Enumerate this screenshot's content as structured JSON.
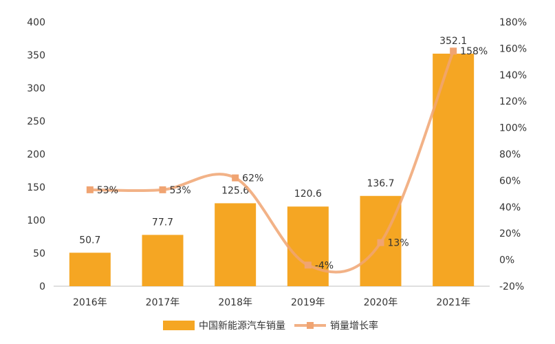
{
  "chart_data": {
    "type": "bar+line",
    "categories": [
      "2016年",
      "2017年",
      "2018年",
      "2019年",
      "2020年",
      "2021年"
    ],
    "series": [
      {
        "name": "中国新能源汽车销量",
        "type": "bar",
        "axis": "left",
        "values": [
          50.7,
          77.7,
          125.6,
          120.6,
          136.7,
          352.1
        ],
        "labels": [
          "50.7",
          "77.7",
          "125.6",
          "120.6",
          "136.7",
          "352.1"
        ],
        "color": "#F5A623"
      },
      {
        "name": "销量增长率",
        "type": "line",
        "axis": "right",
        "smooth": true,
        "values": [
          53,
          53,
          62,
          -4,
          13,
          158
        ],
        "labels": [
          "53%",
          "53%",
          "62%",
          "-4%",
          "13%",
          "158%"
        ],
        "color": "#F0A472"
      }
    ],
    "y_left": {
      "min": 0,
      "max": 400,
      "ticks": [
        0,
        50,
        100,
        150,
        200,
        250,
        300,
        350,
        400
      ],
      "tick_labels": [
        "0",
        "50",
        "100",
        "150",
        "200",
        "250",
        "300",
        "350",
        "400"
      ]
    },
    "y_right": {
      "min": -20,
      "max": 180,
      "ticks": [
        -20,
        0,
        20,
        40,
        60,
        80,
        100,
        120,
        140,
        160,
        180
      ],
      "tick_labels": [
        "-20%",
        "0%",
        "20%",
        "40%",
        "60%",
        "80%",
        "100%",
        "120%",
        "140%",
        "160%",
        "180%"
      ]
    },
    "grid": false,
    "legend": "bottom"
  }
}
